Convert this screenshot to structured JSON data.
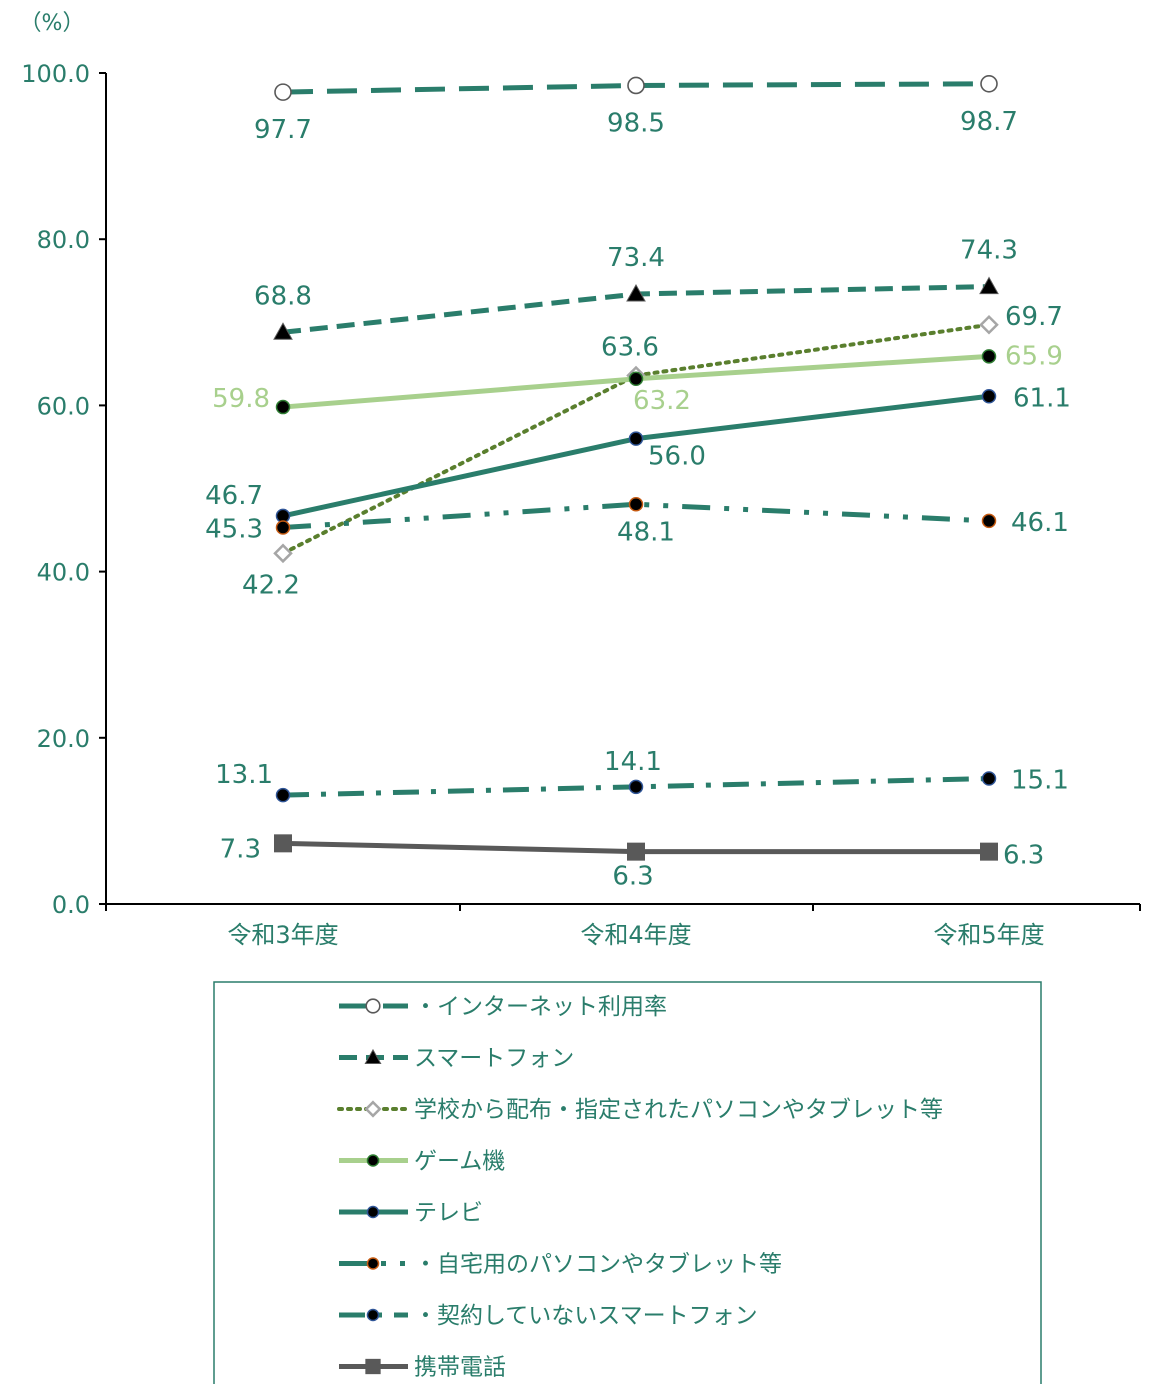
{
  "chart_data": {
    "type": "line",
    "unit_label": "（%）",
    "categories": [
      "令和3年度",
      "令和4年度",
      "令和5年度"
    ],
    "ylim": [
      0,
      100
    ],
    "yticks": [
      "0.0",
      "20.0",
      "40.0",
      "60.0",
      "80.0",
      "100.0"
    ],
    "grid": false,
    "legend_position": "bottom",
    "series": [
      {
        "name": "・インターネット利用率",
        "values": [
          97.7,
          98.5,
          98.7
        ],
        "labels": [
          "97.7",
          "98.5",
          "98.7"
        ],
        "color": "#2a7d6b",
        "dash": "long-dash",
        "marker": "circle-white",
        "label_color": "#2a7d6b"
      },
      {
        "name": "スマートフォン",
        "values": [
          68.8,
          73.4,
          74.3
        ],
        "labels": [
          "68.8",
          "73.4",
          "74.3"
        ],
        "color": "#2a7d6b",
        "dash": "dash",
        "marker": "triangle-black",
        "label_color": "#2a7d6b"
      },
      {
        "name": "学校から配布・指定されたパソコンやタブレット等",
        "values": [
          42.2,
          63.6,
          69.7
        ],
        "labels": [
          "42.2",
          "63.6",
          "69.7"
        ],
        "color": "#5a7f2e",
        "dash": "dot",
        "marker": "diamond-white",
        "label_color": "#2a7d6b"
      },
      {
        "name": "ゲーム機",
        "values": [
          59.8,
          63.2,
          65.9
        ],
        "labels": [
          "59.8",
          "63.2",
          "65.9"
        ],
        "color": "#a8d08d",
        "dash": "solid",
        "marker": "circle-black",
        "label_color": "#a8d08d"
      },
      {
        "name": "テレビ",
        "values": [
          46.7,
          56.0,
          61.1
        ],
        "labels": [
          "46.7",
          "56.0",
          "61.1"
        ],
        "color": "#2a7d6b",
        "dash": "solid",
        "marker": "circle-black-blue",
        "label_color": "#2a7d6b"
      },
      {
        "name": "・自宅用のパソコンやタブレット等",
        "values": [
          45.3,
          48.1,
          46.1
        ],
        "labels": [
          "45.3",
          "48.1",
          "46.1"
        ],
        "color": "#2a7d6b",
        "dash": "dash-dot-dot",
        "marker": "circle-black-orange",
        "label_color": "#2a7d6b"
      },
      {
        "name": "・契約していないスマートフォン",
        "values": [
          13.1,
          14.1,
          15.1
        ],
        "labels": [
          "13.1",
          "14.1",
          "15.1"
        ],
        "color": "#2a7d6b",
        "dash": "dash-dot",
        "marker": "circle-black-blue",
        "label_color": "#2a7d6b"
      },
      {
        "name": "携帯電話",
        "values": [
          7.3,
          6.3,
          6.3
        ],
        "labels": [
          "7.3",
          "6.3",
          "6.3"
        ],
        "color": "#595959",
        "dash": "solid",
        "marker": "square-gray",
        "label_color": "#2a7d6b"
      }
    ]
  }
}
